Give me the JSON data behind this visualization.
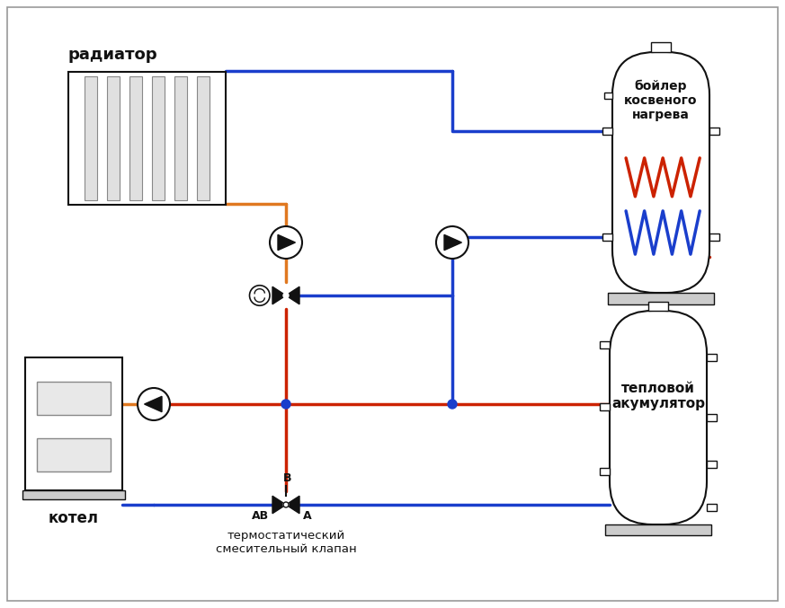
{
  "red": "#cc2200",
  "blue": "#1a3ecc",
  "orange": "#e07820",
  "dark": "#111111",
  "gray": "#888888",
  "lgray": "#cccccc",
  "lw": 2.5,
  "label_radiator": "радиатор",
  "label_boiler_tank": "бойлер\nкосвеного\nнагрева",
  "label_heat_acc": "тепловой\nакумулятор",
  "label_kotel": "котел",
  "label_valve": "термостатический\nсмесительный клапан"
}
